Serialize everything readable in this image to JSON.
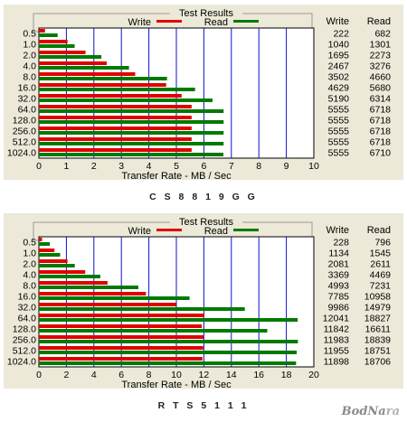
{
  "chart_data": [
    {
      "type": "bar",
      "title": "Test Results",
      "legend": [
        "Write",
        "Read"
      ],
      "colors": {
        "write": "#e00000",
        "read": "#007a00",
        "grid": "#1010c8"
      },
      "categories": [
        "0.5",
        "1.0",
        "2.0",
        "4.0",
        "8.0",
        "16.0",
        "32.0",
        "64.0",
        "128.0",
        "256.0",
        "512.0",
        "1024.0"
      ],
      "xlabel": "Transfer Rate - MB / Sec",
      "xlim": [
        0,
        10
      ],
      "xticks": [
        "0",
        "1",
        "2",
        "3",
        "4",
        "5",
        "6",
        "7",
        "8",
        "9",
        "10"
      ],
      "columns": [
        "Write",
        "Read"
      ],
      "series": [
        {
          "name": "Write",
          "values": [
            0.222,
            1.04,
            1.695,
            2.467,
            3.502,
            4.629,
            5.19,
            5.555,
            5.555,
            5.555,
            5.555,
            5.555
          ],
          "labels": [
            "222",
            "1040",
            "1695",
            "2467",
            "3502",
            "4629",
            "5190",
            "5555",
            "5555",
            "5555",
            "5555",
            "5555"
          ]
        },
        {
          "name": "Read",
          "values": [
            0.682,
            1.301,
            2.273,
            3.276,
            4.66,
            5.68,
            6.314,
            6.718,
            6.718,
            6.718,
            6.718,
            6.71
          ],
          "labels": [
            "682",
            "1301",
            "2273",
            "3276",
            "4660",
            "5680",
            "6314",
            "6718",
            "6718",
            "6718",
            "6718",
            "6710"
          ]
        }
      ]
    },
    {
      "type": "bar",
      "title": "Test Results",
      "legend": [
        "Write",
        "Read"
      ],
      "colors": {
        "write": "#e00000",
        "read": "#007a00",
        "grid": "#1010c8"
      },
      "categories": [
        "0.5",
        "1.0",
        "2.0",
        "4.0",
        "8.0",
        "16.0",
        "32.0",
        "64.0",
        "128.0",
        "256.0",
        "512.0",
        "1024.0"
      ],
      "xlabel": "Transfer Rate - MB / Sec",
      "xlim": [
        0,
        20
      ],
      "xticks": [
        "0",
        "2",
        "4",
        "6",
        "8",
        "10",
        "12",
        "14",
        "16",
        "18",
        "20"
      ],
      "columns": [
        "Write",
        "Read"
      ],
      "series": [
        {
          "name": "Write",
          "values": [
            0.228,
            1.134,
            2.081,
            3.369,
            4.993,
            7.785,
            9.986,
            12.041,
            11.842,
            11.983,
            11.955,
            11.898
          ],
          "labels": [
            "228",
            "1134",
            "2081",
            "3369",
            "4993",
            "7785",
            "9986",
            "12041",
            "11842",
            "11983",
            "11955",
            "11898"
          ]
        },
        {
          "name": "Read",
          "values": [
            0.796,
            1.545,
            2.611,
            4.469,
            7.231,
            10.958,
            14.979,
            18.827,
            16.611,
            18.839,
            18.751,
            18.706
          ],
          "labels": [
            "796",
            "1545",
            "2611",
            "4469",
            "7231",
            "10958",
            "14979",
            "18827",
            "16611",
            "18839",
            "18751",
            "18706"
          ]
        }
      ]
    }
  ],
  "captions": [
    "C S 8 8 1 9 G G",
    "R T S 5 1 1 1"
  ],
  "watermark": {
    "part1": "BodNa",
    "part2": "ra"
  }
}
